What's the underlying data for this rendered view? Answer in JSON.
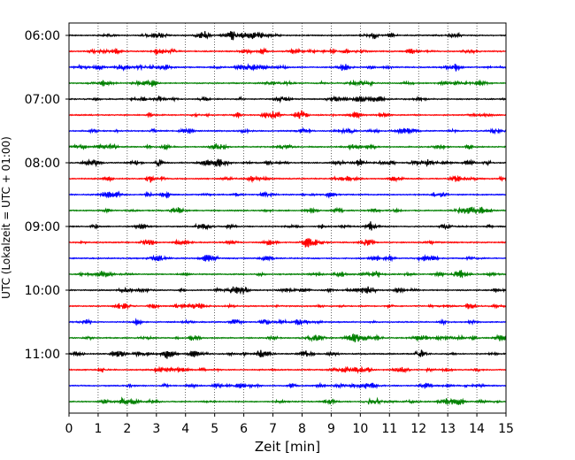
{
  "chart_data": {
    "type": "line",
    "title": "",
    "xlabel": "Zeit  [min]",
    "ylabel": "UTC (Lokalzeit = UTC + 01:00)",
    "xlim": [
      0,
      15
    ],
    "x_ticks": [
      "0",
      "1",
      "2",
      "3",
      "4",
      "5",
      "6",
      "7",
      "8",
      "9",
      "10",
      "11",
      "12",
      "13",
      "14",
      "15"
    ],
    "y_ticks": [
      "06:00",
      "07:00",
      "08:00",
      "09:00",
      "10:00",
      "11:00"
    ],
    "grid": "vertical dotted",
    "trace_interval_minutes": 15,
    "trace_start": "06:00",
    "trace_count": 24,
    "colors": [
      "#000000",
      "#ff0000",
      "#0000ff",
      "#008000"
    ]
  }
}
